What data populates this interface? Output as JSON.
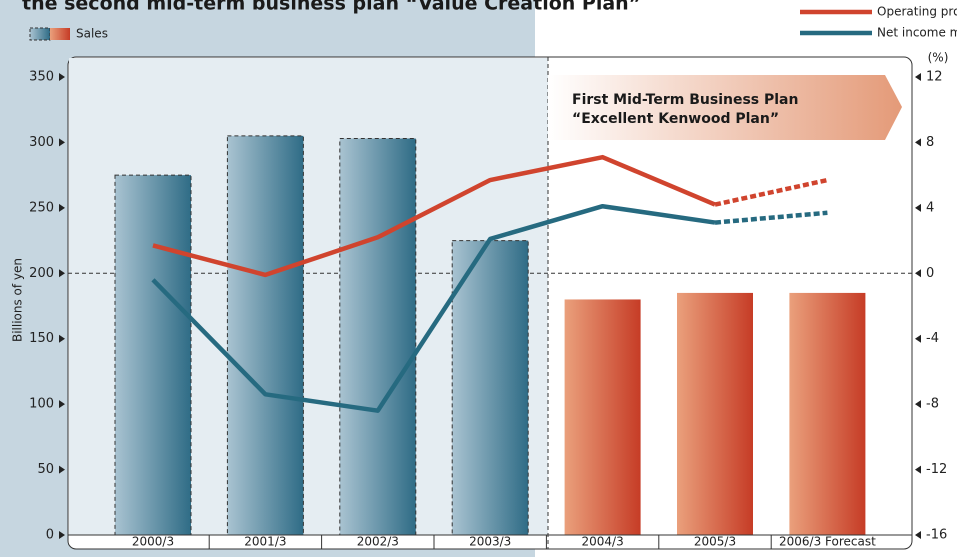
{
  "chart_data": {
    "type": "bar_line",
    "title": "the second mid-term business plan “Value Creation Plan”",
    "ylabel": "Billions of yen",
    "y2label": "(%)",
    "annotation": [
      "First Mid-Term Business Plan",
      "“Excellent Kenwood Plan”"
    ],
    "categories": [
      "2000/3",
      "2001/3",
      "2002/3",
      "2003/3",
      "2004/3",
      "2005/3",
      "2006/3 Forecast"
    ],
    "bars": {
      "name": "Sales",
      "values": [
        275,
        305,
        303,
        225,
        180,
        185,
        185
      ],
      "colors": [
        "#3d7a94",
        "#3d7a94",
        "#3d7a94",
        "#3d7a94",
        "#cc4a32",
        "#cc4a32",
        "#cc4a32"
      ]
    },
    "series": [
      {
        "name": "Operating profit margin",
        "color": "#d0442e",
        "axis": "y2",
        "values": [
          1.7,
          -0.1,
          2.2,
          5.7,
          7.1,
          4.2,
          5.7
        ]
      },
      {
        "name": "Net income margin",
        "color": "#266a80",
        "axis": "y2",
        "values": [
          -0.4,
          -7.4,
          -8.4,
          2.1,
          4.1,
          3.1,
          3.7
        ]
      }
    ],
    "dashed_from": 5,
    "ylim": [
      0,
      350
    ],
    "yticks": [
      0,
      50,
      100,
      150,
      200,
      250,
      300,
      350
    ],
    "y2lim": [
      -16,
      12
    ],
    "y2ticks": [
      -16,
      -12,
      -8,
      -4,
      0,
      4,
      8,
      12
    ]
  }
}
